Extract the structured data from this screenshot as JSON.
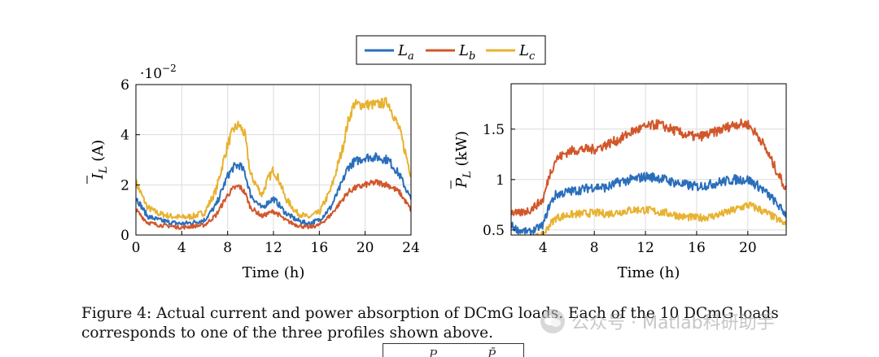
{
  "legend": [
    {
      "label": "L",
      "sub": "a",
      "color": "#2a6ebb"
    },
    {
      "label": "L",
      "sub": "b",
      "color": "#d1572b"
    },
    {
      "label": "L",
      "sub": "c",
      "color": "#e8b230"
    }
  ],
  "chart_data": [
    {
      "type": "line",
      "xlabel": "Time (h)",
      "ylabel": {
        "text": "I",
        "sub": "L",
        "unit": "(A)"
      },
      "exponent": {
        "base": "·10",
        "power": "−2"
      },
      "xlim": [
        0,
        24
      ],
      "ylim": [
        0,
        6
      ],
      "xticks": [
        "0",
        "4",
        "8",
        "12",
        "16",
        "20",
        "24"
      ],
      "yticks": [
        "0",
        "2",
        "4",
        "6"
      ],
      "grid": true,
      "x": [
        0,
        1,
        2,
        3,
        4,
        5,
        6,
        7,
        8,
        8.5,
        9,
        9.5,
        10,
        11,
        11.5,
        12,
        12.5,
        13,
        14,
        15,
        16,
        17,
        18,
        18.5,
        19,
        20,
        21,
        22,
        23,
        24
      ],
      "series": [
        {
          "legend_index": 0,
          "noise": 0.13,
          "values": [
            1.5,
            0.75,
            0.6,
            0.5,
            0.45,
            0.5,
            0.6,
            1.2,
            2.35,
            2.7,
            2.8,
            2.5,
            1.6,
            1.05,
            1.3,
            1.45,
            1.2,
            0.9,
            0.6,
            0.45,
            0.6,
            1.1,
            2.1,
            2.7,
            2.9,
            3.1,
            3.1,
            3.0,
            2.4,
            1.4
          ]
        },
        {
          "legend_index": 1,
          "noise": 0.11,
          "values": [
            1.0,
            0.5,
            0.4,
            0.35,
            0.3,
            0.35,
            0.4,
            0.8,
            1.6,
            1.85,
            1.95,
            1.7,
            1.1,
            0.75,
            0.85,
            0.95,
            0.8,
            0.6,
            0.4,
            0.3,
            0.4,
            0.8,
            1.4,
            1.7,
            1.85,
            2.0,
            2.1,
            2.0,
            1.7,
            1.0
          ]
        },
        {
          "legend_index": 2,
          "noise": 0.15,
          "values": [
            2.1,
            1.1,
            0.85,
            0.75,
            0.7,
            0.75,
            0.9,
            1.8,
            3.6,
            4.2,
            4.4,
            4.0,
            2.4,
            1.6,
            2.2,
            2.6,
            2.2,
            1.5,
            0.9,
            0.7,
            0.9,
            1.8,
            3.4,
            4.5,
            5.2,
            5.2,
            5.2,
            5.3,
            4.2,
            2.4
          ]
        }
      ]
    },
    {
      "type": "line",
      "xlabel": "Time (h)",
      "ylabel": {
        "text": "P",
        "sub": "L",
        "unit": "(kW)"
      },
      "xlim": [
        1.5,
        23
      ],
      "ylim": [
        0.45,
        1.95
      ],
      "xticks": [
        "4",
        "8",
        "12",
        "16",
        "20"
      ],
      "yticks": [
        "0.5",
        "1",
        "1.5"
      ],
      "grid": true,
      "x": [
        1.5,
        2,
        3,
        4,
        4.5,
        5,
        6,
        7,
        8,
        9,
        10,
        11,
        12,
        13,
        14,
        15,
        16,
        17,
        18,
        19,
        20,
        21,
        22,
        23
      ],
      "series": [
        {
          "legend_index": 0,
          "noise": 0.035,
          "values": [
            0.55,
            0.5,
            0.48,
            0.55,
            0.75,
            0.85,
            0.88,
            0.9,
            0.93,
            0.92,
            0.98,
            1.0,
            1.03,
            1.02,
            0.98,
            0.95,
            0.93,
            0.95,
            0.98,
            1.0,
            1.0,
            0.92,
            0.8,
            0.65
          ]
        },
        {
          "legend_index": 1,
          "noise": 0.035,
          "values": [
            0.68,
            0.66,
            0.7,
            0.8,
            1.05,
            1.2,
            1.28,
            1.3,
            1.3,
            1.35,
            1.4,
            1.48,
            1.52,
            1.55,
            1.5,
            1.45,
            1.42,
            1.45,
            1.5,
            1.55,
            1.55,
            1.4,
            1.15,
            0.9
          ]
        },
        {
          "legend_index": 2,
          "noise": 0.035,
          "values": [
            0.42,
            0.42,
            0.42,
            0.45,
            0.55,
            0.62,
            0.65,
            0.66,
            0.67,
            0.66,
            0.68,
            0.7,
            0.7,
            0.68,
            0.66,
            0.63,
            0.62,
            0.63,
            0.66,
            0.7,
            0.75,
            0.7,
            0.63,
            0.55
          ]
        }
      ]
    }
  ],
  "caption": {
    "line1": "Figure 4: Actual current and power absorption of DCmG loads. Each of the 10 DCmG loads",
    "line2": "corresponds to one of the three profiles shown above."
  },
  "watermark": "公众号 · Matlab科研助手",
  "table_fragment": [
    "P",
    "P̄"
  ]
}
